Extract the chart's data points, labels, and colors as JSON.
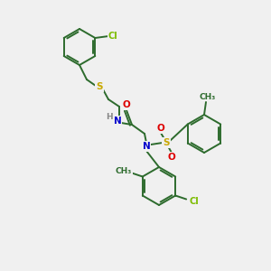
{
  "background_color": "#f0f0f0",
  "bond_color": "#2d6b2d",
  "atom_colors": {
    "Cl": "#7cbc00",
    "S": "#c8a800",
    "N": "#0000cc",
    "O": "#dd0000",
    "H": "#888888",
    "C": "#2d6b2d"
  },
  "figsize": [
    3.0,
    3.0
  ],
  "dpi": 100
}
